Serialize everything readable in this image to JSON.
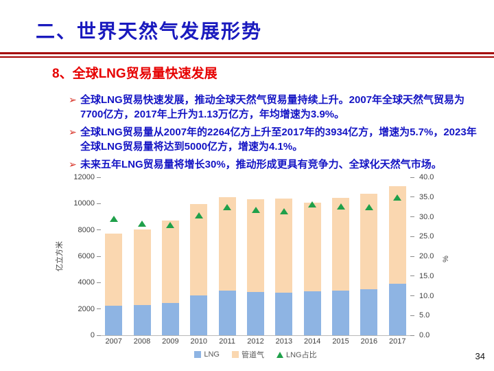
{
  "slide": {
    "title": "二、世界天然气发展形势",
    "subtitle": "8、全球LNG贸易量快速发展",
    "bullet_marker": "➢",
    "bullets": [
      "全球LNG贸易快速发展，推动全球天然气贸易量持续上升。2007年全球天然气贸易为7700亿方，2017年上升为1.13万亿方，年均增速为3.9%。",
      "全球LNG贸易量从2007年的2264亿方上升至2017年的3934亿方，增速为5.7%，2023年全球LNG贸易量将达到5000亿方，增速为4.1%。",
      "未来五年LNG贸易量将增长30%，推动形成更具有竞争力、全球化天然气市场。"
    ],
    "page_number": "34"
  },
  "colors": {
    "title_blue": "#1a1abe",
    "body_blue": "#1414c4",
    "accent_red": "#e60000",
    "bullet_red": "#d62b1f",
    "divider_red": "#a40000",
    "bar_lng": "#8eb4e3",
    "bar_pipeline": "#fad7b0",
    "marker_green": "#1fa04a",
    "axis_text": "#404040",
    "legend_text": "#595959"
  },
  "chart_data": {
    "type": "bar",
    "subtype": "stacked-columns-with-triangle-markers",
    "title": "",
    "categories": [
      "2007",
      "2008",
      "2009",
      "2010",
      "2011",
      "2012",
      "2013",
      "2014",
      "2015",
      "2016",
      "2017"
    ],
    "series": [
      {
        "name": "LNG",
        "axis": "left",
        "color_key": "bar_lng",
        "values": [
          2264,
          2270,
          2430,
          3020,
          3400,
          3280,
          3250,
          3330,
          3390,
          3480,
          3934
        ]
      },
      {
        "name": "管道气",
        "axis": "left",
        "color_key": "bar_pipeline",
        "values": [
          5436,
          5770,
          6270,
          6960,
          7110,
          7060,
          7120,
          6720,
          7030,
          7250,
          7366
        ]
      },
      {
        "name": "LNG占比",
        "axis": "right",
        "marker": "triangle",
        "color_key": "marker_green",
        "values": [
          29.4,
          28.2,
          27.9,
          30.3,
          32.4,
          31.7,
          31.3,
          33.1,
          32.5,
          32.4,
          34.8
        ]
      }
    ],
    "xlabel": "",
    "ylabel": "亿立方米",
    "y2label": "%",
    "ylim": [
      0,
      12000
    ],
    "y2lim": [
      0,
      40.0
    ],
    "left_ticks": [
      "0",
      "2000",
      "4000",
      "6000",
      "8000",
      "10000",
      "12000"
    ],
    "right_ticks": [
      "0.0",
      "5.0",
      "10.0",
      "15.0",
      "20.0",
      "25.0",
      "30.0",
      "35.0",
      "40.0"
    ],
    "grid": false,
    "legend_position": "bottom"
  }
}
